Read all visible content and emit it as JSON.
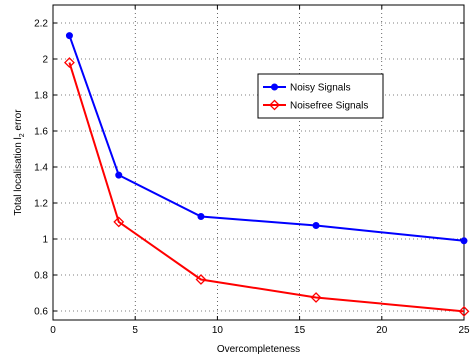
{
  "chart_data": {
    "type": "line",
    "title": "",
    "xlabel": "Overcompleteness",
    "ylabel_main": "Total localisation l",
    "ylabel_sub": "2",
    "ylabel_tail": " error",
    "xlim": [
      0,
      25
    ],
    "ylim": [
      0.55,
      2.3
    ],
    "xticks": [
      0,
      5,
      10,
      15,
      20,
      25
    ],
    "xtick_labels": [
      "0",
      "5",
      "10",
      "15",
      "20",
      "25"
    ],
    "yticks": [
      0.6,
      0.8,
      1.0,
      1.2,
      1.4,
      1.6,
      1.8,
      2.0,
      2.2
    ],
    "ytick_labels": [
      "0.6",
      "0.8",
      "1",
      "1.2",
      "1.4",
      "1.6",
      "1.8",
      "2",
      "2.2"
    ],
    "grid": true,
    "legend_position": "upper-right",
    "x": [
      1,
      4,
      9,
      16,
      25
    ],
    "series": [
      {
        "name": "Noisy Signals",
        "color": "#0000ff",
        "marker": "circle",
        "values": [
          2.13,
          1.355,
          1.125,
          1.075,
          0.99
        ]
      },
      {
        "name": "Noisefree Signals",
        "color": "#ff0000",
        "marker": "diamond",
        "values": [
          1.98,
          1.095,
          0.775,
          0.675,
          0.598
        ]
      }
    ]
  }
}
